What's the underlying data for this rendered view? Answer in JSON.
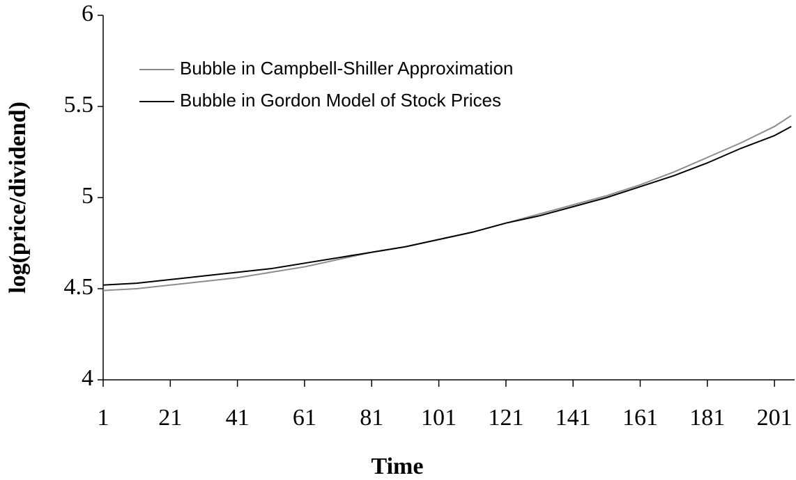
{
  "chart_data": {
    "type": "line",
    "x_label": "Time",
    "y_label": "log(price/dividend)",
    "x": [
      1,
      11,
      21,
      31,
      41,
      51,
      61,
      71,
      81,
      91,
      101,
      111,
      121,
      131,
      141,
      151,
      161,
      171,
      181,
      191,
      201,
      206
    ],
    "series": [
      {
        "name": "Bubble in Campbell-Shiller Approximation",
        "color": "#8c8c8c",
        "values": [
          4.49,
          4.5,
          4.52,
          4.54,
          4.56,
          4.59,
          4.62,
          4.66,
          4.7,
          4.73,
          4.77,
          4.81,
          4.86,
          4.91,
          4.96,
          5.01,
          5.07,
          5.14,
          5.22,
          5.3,
          5.39,
          5.45
        ]
      },
      {
        "name": "Bubble in Gordon Model of Stock Prices",
        "color": "#000000",
        "values": [
          4.52,
          4.53,
          4.55,
          4.57,
          4.59,
          4.61,
          4.64,
          4.67,
          4.7,
          4.73,
          4.77,
          4.81,
          4.86,
          4.9,
          4.95,
          5.0,
          5.06,
          5.12,
          5.19,
          5.27,
          5.34,
          5.39
        ]
      }
    ],
    "xlim": [
      1,
      207
    ],
    "xticks": [
      1,
      21,
      41,
      61,
      81,
      101,
      121,
      141,
      161,
      181,
      201
    ],
    "ylim": [
      4,
      6
    ],
    "yticks": [
      4,
      4.5,
      5,
      5.5,
      6
    ],
    "grid": false,
    "legend": "upper left"
  }
}
